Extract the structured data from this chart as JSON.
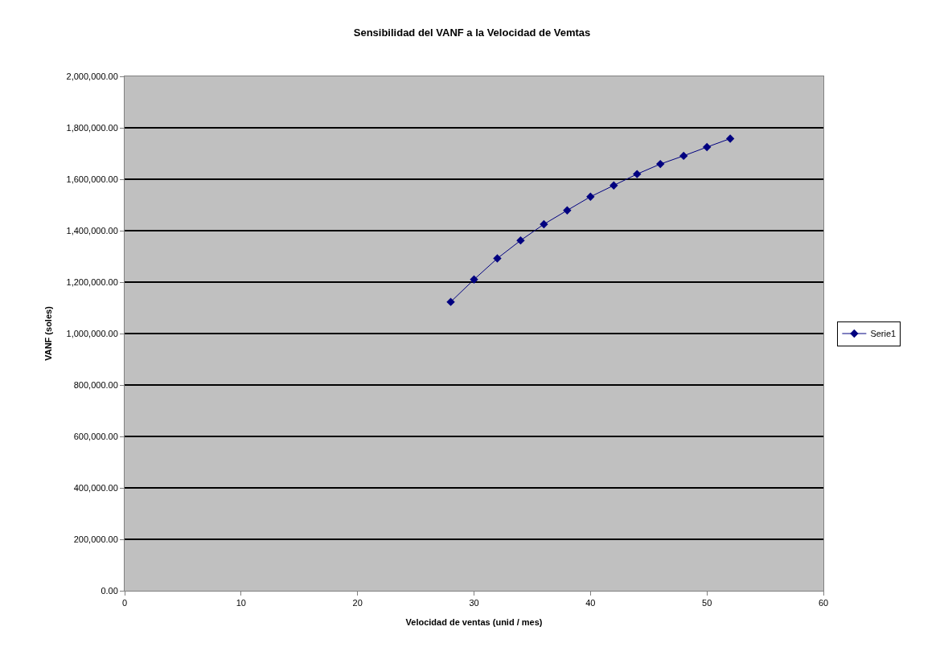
{
  "chart_data": {
    "type": "line",
    "title": "Sensibilidad del VANF a la Velocidad de Vemtas",
    "xlabel": "Velocidad de ventas (unid / mes)",
    "ylabel": "VANF (soles)",
    "x": [
      28,
      30,
      32,
      34,
      36,
      38,
      40,
      42,
      44,
      46,
      48,
      50,
      52
    ],
    "series": [
      {
        "name": "Serie1",
        "color": "#000080",
        "values": [
          1123000,
          1210000,
          1292000,
          1362000,
          1425000,
          1479000,
          1532000,
          1576000,
          1620000,
          1659000,
          1691000,
          1725000,
          1758000
        ]
      }
    ],
    "xlim": [
      0,
      60
    ],
    "xticks": [
      0,
      10,
      20,
      30,
      40,
      50,
      60
    ],
    "ylim": [
      0,
      2000000
    ],
    "yticks": [
      {
        "value": 0,
        "label": "0.00"
      },
      {
        "value": 200000,
        "label": "200,000.00"
      },
      {
        "value": 400000,
        "label": "400,000.00"
      },
      {
        "value": 600000,
        "label": "600,000.00"
      },
      {
        "value": 800000,
        "label": "800,000.00"
      },
      {
        "value": 1000000,
        "label": "1,000,000.00"
      },
      {
        "value": 1200000,
        "label": "1,200,000.00"
      },
      {
        "value": 1400000,
        "label": "1,400,000.00"
      },
      {
        "value": 1600000,
        "label": "1,600,000.00"
      },
      {
        "value": 1800000,
        "label": "1,800,000.00"
      },
      {
        "value": 2000000,
        "label": "2,000,000.00"
      }
    ],
    "grid": "y",
    "legend": "right",
    "marker": "diamond",
    "line_style": "solid"
  }
}
